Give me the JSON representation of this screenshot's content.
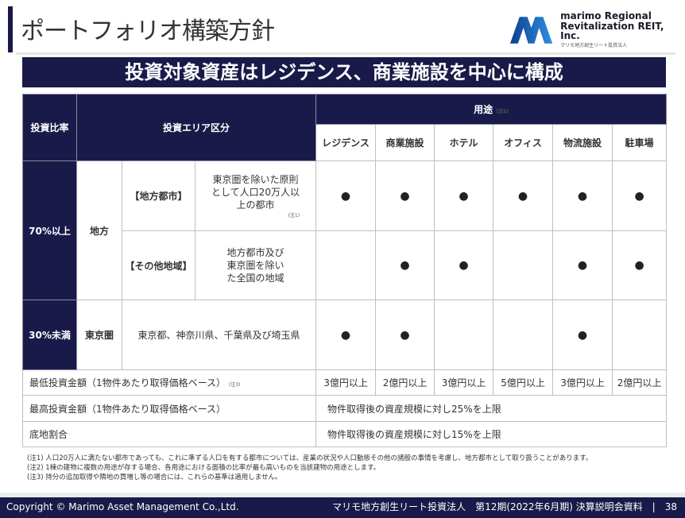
{
  "header": {
    "title": "ポートフォリオ構築方針",
    "logo_en_1": "marimo Regional",
    "logo_en_2": "Revitalization REIT, Inc.",
    "logo_jp": "マリモ地方創生リート投資法人"
  },
  "banner": "投資対象資産はレジデンス、商業施設を中心に構成",
  "table": {
    "h_ratio": "投資比率",
    "h_area": "投資エリア区分",
    "h_use": "用途",
    "h_use_note": "(注2)",
    "uses": [
      "レジデンス",
      "商業施設",
      "ホテル",
      "オフィス",
      "物流施設",
      "駐車場"
    ],
    "rows": [
      {
        "ratio": "70%以上",
        "region": "地方",
        "sub": "【地方都市】",
        "desc": "東京圏を除いた原則として人口20万人以上の都市",
        "note": "(注1)",
        "marks": [
          true,
          true,
          true,
          true,
          true,
          true
        ]
      },
      {
        "sub": "【その他地域】",
        "desc": "地方都市及び東京圏を除いた全国の地域",
        "marks": [
          false,
          true,
          true,
          false,
          true,
          true
        ]
      },
      {
        "ratio": "30%未満",
        "region": "東京圏",
        "desc": "東京都、神奈川県、千葉県及び埼玉県",
        "marks": [
          true,
          true,
          false,
          false,
          true,
          false
        ]
      }
    ],
    "dot": "●",
    "min_label": "最低投資金額（1物件あたり取得価格ベース）",
    "min_note": "(注3)",
    "min_values": [
      "3億円以上",
      "2億円以上",
      "3億円以上",
      "5億円以上",
      "3億円以上",
      "2億円以上"
    ],
    "max_label": "最高投資金額（1物件あたり取得価格ベース）",
    "max_value": "物件取得後の資産規模に対し25%を上限",
    "land_label": "底地割合",
    "land_value": "物件取得後の資産規模に対し15%を上限"
  },
  "footnotes": [
    "(注1) 人口20万人に満たない都市であっても、これに準ずる人口を有する都市については、産業の状況や人口動態その他の諸般の事情を考慮し、地方都市として取り扱うことがあります。",
    "(注2) 1棟の建物に複数の用途が存する場合、各用途における面積の比率が最も高いものを当該建物の用途とします。",
    "(注3) 持分の追加取得や隣地の買増し等の場合には、これらの基準は適用しません。"
  ],
  "footer": {
    "copyright": "Copyright © Marimo Asset Management Co.,Ltd.",
    "doc": "マリモ地方創生リート投資法人　第12期(2022年6月期) 決算説明会資料　|　38"
  },
  "colors": {
    "navy": "#1a1a4a",
    "logo_blue": "#1f5fb4"
  }
}
